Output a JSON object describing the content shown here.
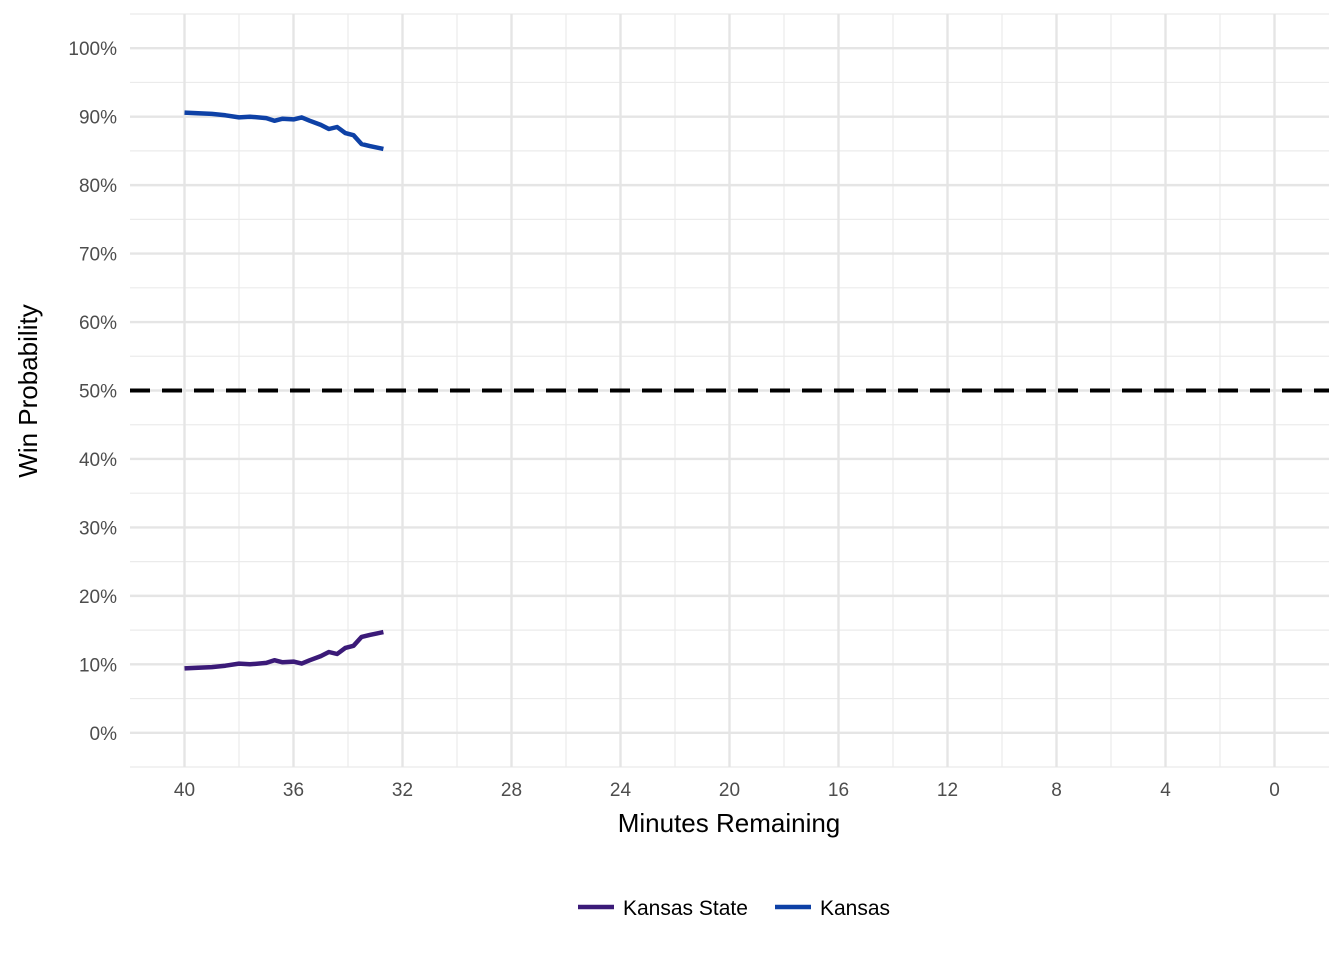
{
  "chart_data": {
    "type": "line",
    "xlabel": "Minutes Remaining",
    "ylabel": "Win Probability",
    "xlim": [
      42,
      -2
    ],
    "ylim": [
      -5,
      105
    ],
    "x_reversed": true,
    "x_ticks": [
      40,
      36,
      32,
      28,
      24,
      20,
      16,
      12,
      8,
      4,
      0
    ],
    "x_tick_labels": [
      "40",
      "36",
      "32",
      "28",
      "24",
      "20",
      "16",
      "12",
      "8",
      "4",
      "0"
    ],
    "y_ticks": [
      0,
      10,
      20,
      30,
      40,
      50,
      60,
      70,
      80,
      90,
      100
    ],
    "y_tick_labels": [
      "0%",
      "10%",
      "20%",
      "30%",
      "40%",
      "50%",
      "60%",
      "70%",
      "80%",
      "90%",
      "100%"
    ],
    "grid": true,
    "legend_position": "bottom",
    "reference_line": {
      "y": 50,
      "style": "dashed",
      "color": "#000000"
    },
    "series": [
      {
        "name": "Kansas State",
        "color": "#3b1a78",
        "points": [
          [
            40.0,
            9.4
          ],
          [
            39.0,
            9.6
          ],
          [
            38.5,
            9.8
          ],
          [
            38.0,
            10.1
          ],
          [
            37.6,
            10.0
          ],
          [
            37.0,
            10.2
          ],
          [
            36.7,
            10.6
          ],
          [
            36.4,
            10.3
          ],
          [
            36.0,
            10.4
          ],
          [
            35.7,
            10.1
          ],
          [
            35.4,
            10.6
          ],
          [
            35.0,
            11.2
          ],
          [
            34.7,
            11.8
          ],
          [
            34.4,
            11.5
          ],
          [
            34.1,
            12.4
          ],
          [
            33.8,
            12.7
          ],
          [
            33.5,
            14.0
          ],
          [
            33.2,
            14.3
          ],
          [
            32.7,
            14.7
          ]
        ]
      },
      {
        "name": "Kansas",
        "color": "#0e41a6",
        "points": [
          [
            40.0,
            90.6
          ],
          [
            39.0,
            90.4
          ],
          [
            38.5,
            90.2
          ],
          [
            38.0,
            89.9
          ],
          [
            37.6,
            90.0
          ],
          [
            37.0,
            89.8
          ],
          [
            36.7,
            89.4
          ],
          [
            36.4,
            89.7
          ],
          [
            36.0,
            89.6
          ],
          [
            35.7,
            89.9
          ],
          [
            35.4,
            89.4
          ],
          [
            35.0,
            88.8
          ],
          [
            34.7,
            88.2
          ],
          [
            34.4,
            88.5
          ],
          [
            34.1,
            87.6
          ],
          [
            33.8,
            87.3
          ],
          [
            33.5,
            86.0
          ],
          [
            33.2,
            85.7
          ],
          [
            32.7,
            85.3
          ]
        ]
      }
    ]
  }
}
